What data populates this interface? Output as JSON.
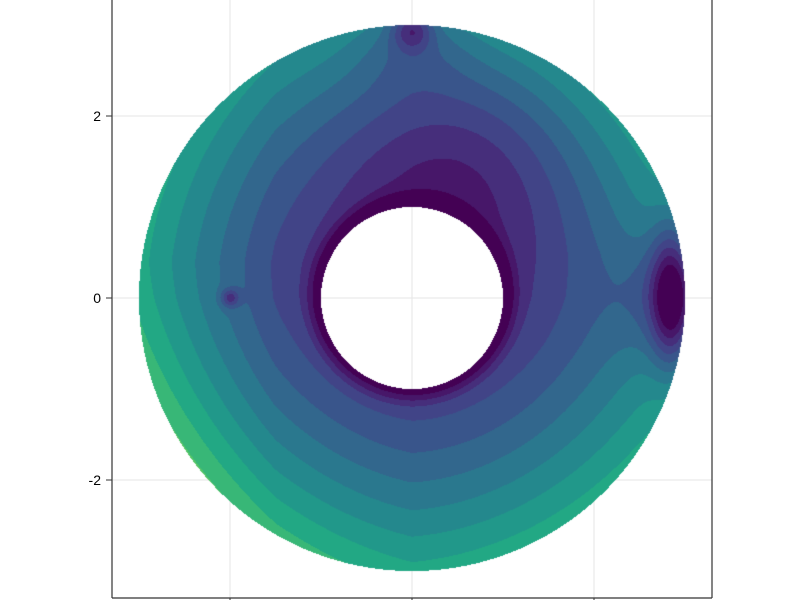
{
  "chart_data": {
    "type": "contour",
    "title": "",
    "xlabel": "",
    "ylabel": "",
    "xlim": [
      -3.3,
      3.3
    ],
    "ylim": [
      -3.3,
      3.3
    ],
    "x_ticks": [
      -2,
      0,
      2
    ],
    "y_ticks": [
      -2,
      0,
      2
    ],
    "y_tick_labels": [
      "2",
      "0",
      "-2"
    ],
    "grid": true,
    "legend": "none",
    "domain": {
      "inner_radius": 1.0,
      "outer_radius": 3.0
    },
    "colormap": "viridis",
    "levels": 13,
    "features": [
      {
        "name": "dark-ridge-right",
        "x": 2.9,
        "y": 0.0
      },
      {
        "name": "dark-pocket-top",
        "x": 0.0,
        "y": 2.95
      },
      {
        "name": "dark-point-left",
        "x": -2.0,
        "y": 0.0
      }
    ],
    "colors": {
      "background": "#ffffff",
      "axes": "#333333",
      "grid": "#e6e6e6",
      "low": "#440154",
      "high": "#7ad151"
    }
  }
}
